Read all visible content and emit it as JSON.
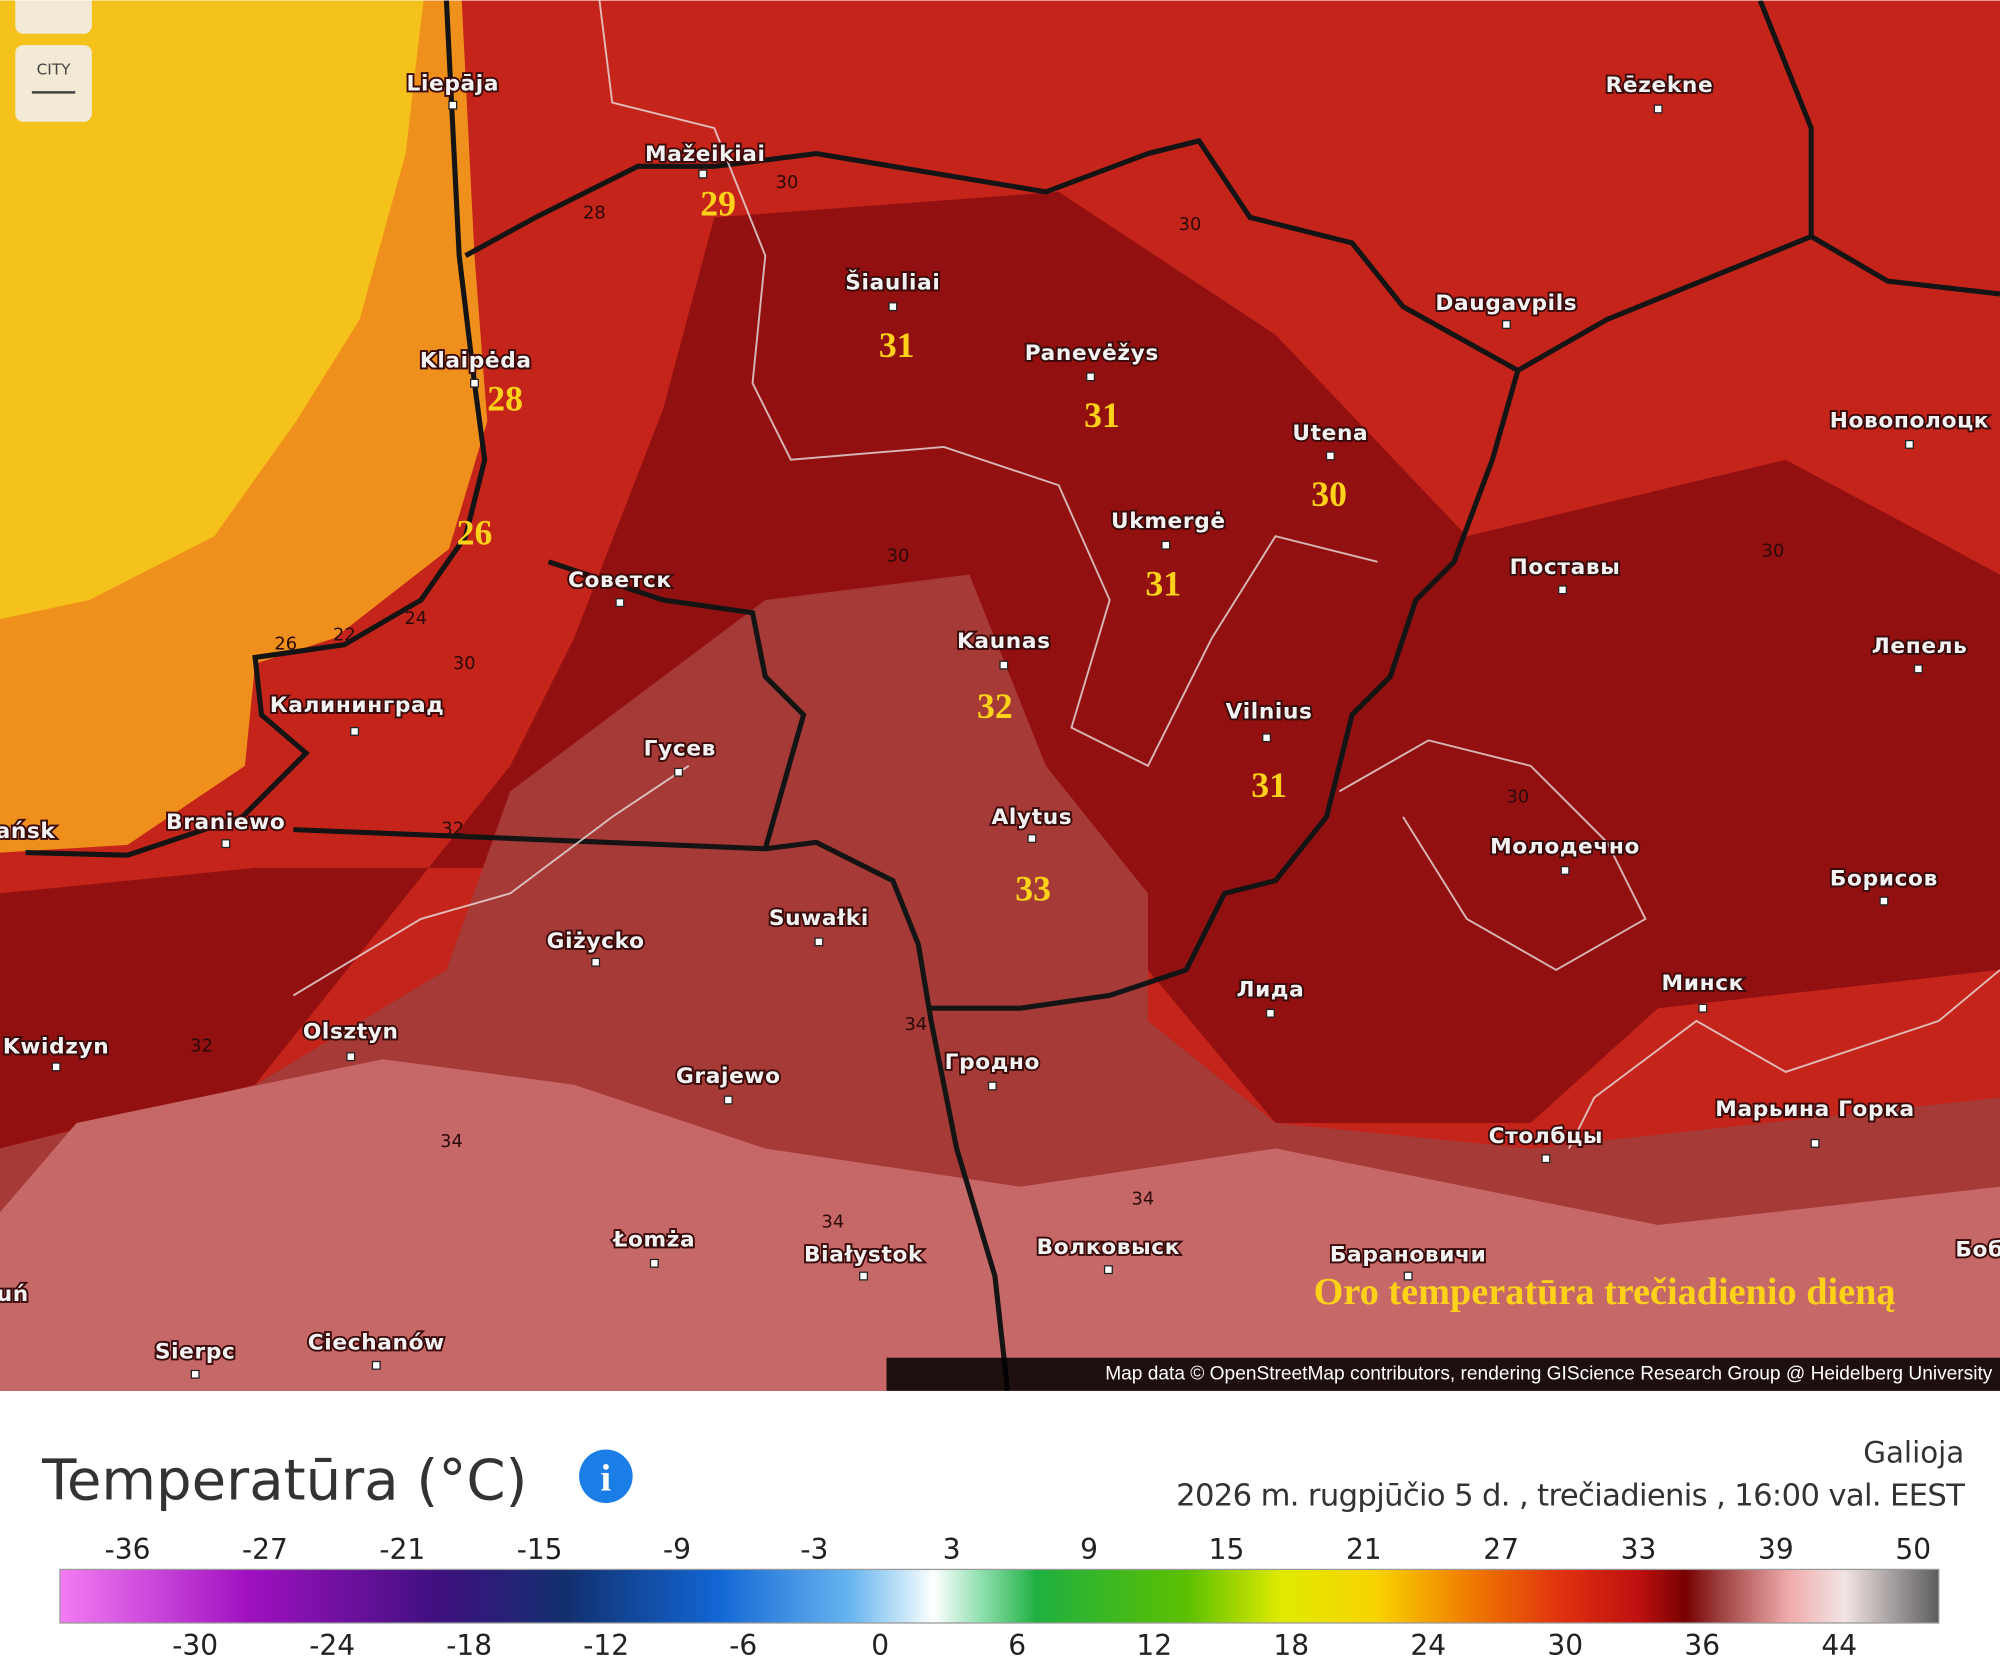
{
  "map": {
    "button": "CITY",
    "caption": "Oro temperatūra trečiadienio dieną",
    "attribution": "Map data © OpenStreetMap contributors, rendering GIScience Research Group @ Heidelberg University",
    "cities": [
      "Liepāja",
      "Mažeikiai",
      "Šiauliai",
      "Rēzekne",
      "Daugavpils",
      "Klaipėda",
      "Panevėžys",
      "Utena",
      "Новополоцк",
      "Ukmergė",
      "Советск",
      "Поставы",
      "Kaunas",
      "Лепель",
      "Калининград",
      "Vilnius",
      "Гусев",
      "Braniewo",
      "Alytus",
      "Молодечно",
      "Борисов",
      "Suwałki",
      "Giżycko",
      "Лида",
      "Минск",
      "Olsztyn",
      "Kwidzyn",
      "Гродно",
      "Grajewo",
      "Марьина Горка",
      "Столбцы",
      "Łomża",
      "Białystok",
      "Волковыск",
      "Барановичи",
      "Ciechanów",
      "Sierpc",
      "ańsk",
      "uń",
      "Боб"
    ],
    "temperatures": [
      29,
      31,
      28,
      31,
      30,
      26,
      31,
      32,
      31,
      33
    ],
    "contour_labels": [
      28,
      30,
      30,
      30,
      30,
      26,
      22,
      24,
      30,
      32,
      32,
      34,
      34,
      34,
      34,
      30
    ]
  },
  "legend": {
    "title": "Temperatūra (°C)",
    "valid_label": "Galioja",
    "valid_time": "2026 m. rugpjūčio 5 d. , trečiadienis ,  16:00 val.  EEST",
    "top_ticks": [
      -36,
      -27,
      -21,
      -15,
      -9,
      -3,
      3,
      9,
      15,
      21,
      27,
      33,
      39,
      50
    ],
    "bottom_ticks": [
      -30,
      -24,
      -18,
      -12,
      -6,
      0,
      6,
      12,
      18,
      24,
      30,
      36,
      44
    ]
  }
}
